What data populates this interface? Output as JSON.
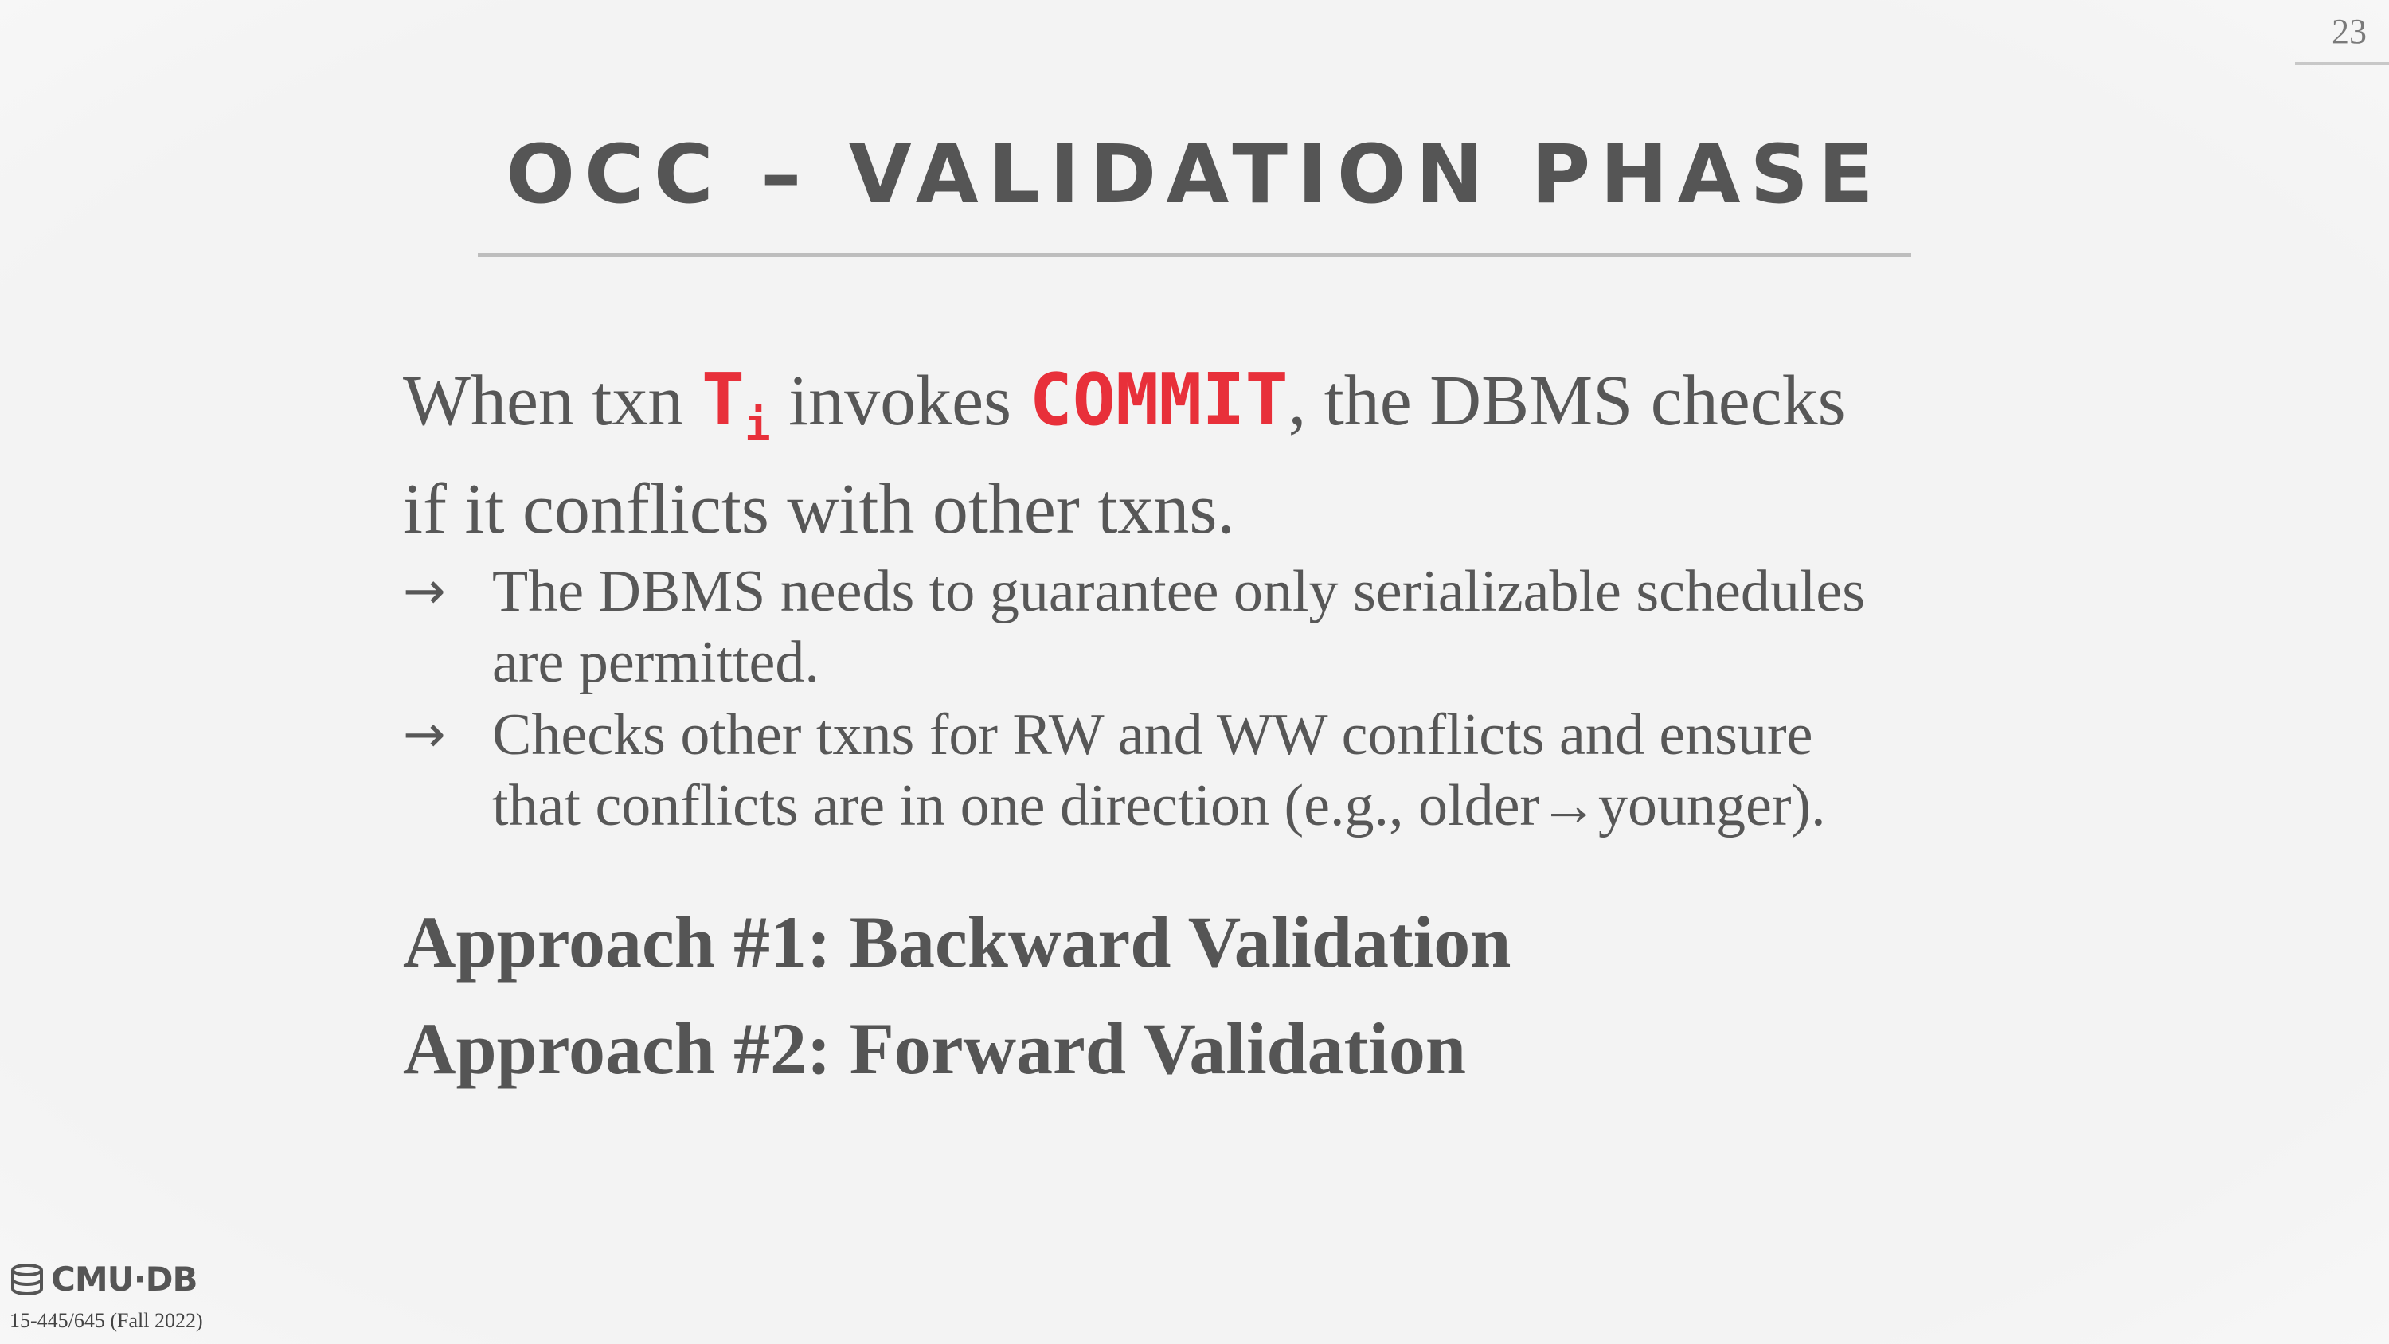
{
  "page_number": "23",
  "title": "OCC – VALIDATION PHASE",
  "lead": {
    "part1": "When txn ",
    "txn_base": "T",
    "txn_sub": "i",
    "part2": " invokes ",
    "commit": "COMMIT",
    "part3": ", the DBMS checks",
    "line2": "if it conflicts with other txns."
  },
  "bullets": [
    {
      "arrow": "→",
      "line1": "The DBMS needs to guarantee only serializable schedules",
      "line2": "are permitted."
    },
    {
      "arrow": "→",
      "line1": "Checks other txns for RW and WW conflicts and ensure",
      "line2": "that conflicts are in one direction (e.g., older→younger)."
    }
  ],
  "approaches": [
    "Approach #1: Backward Validation",
    "Approach #2: Forward Validation"
  ],
  "footer": {
    "logo_text": "CMU·DB",
    "course": "15-445/645 (Fall 2022)"
  },
  "colors": {
    "accent": "#e8303a",
    "text": "#575757",
    "background": "#f2f2f2"
  },
  "icons": {
    "logo": "database-stack-icon"
  }
}
